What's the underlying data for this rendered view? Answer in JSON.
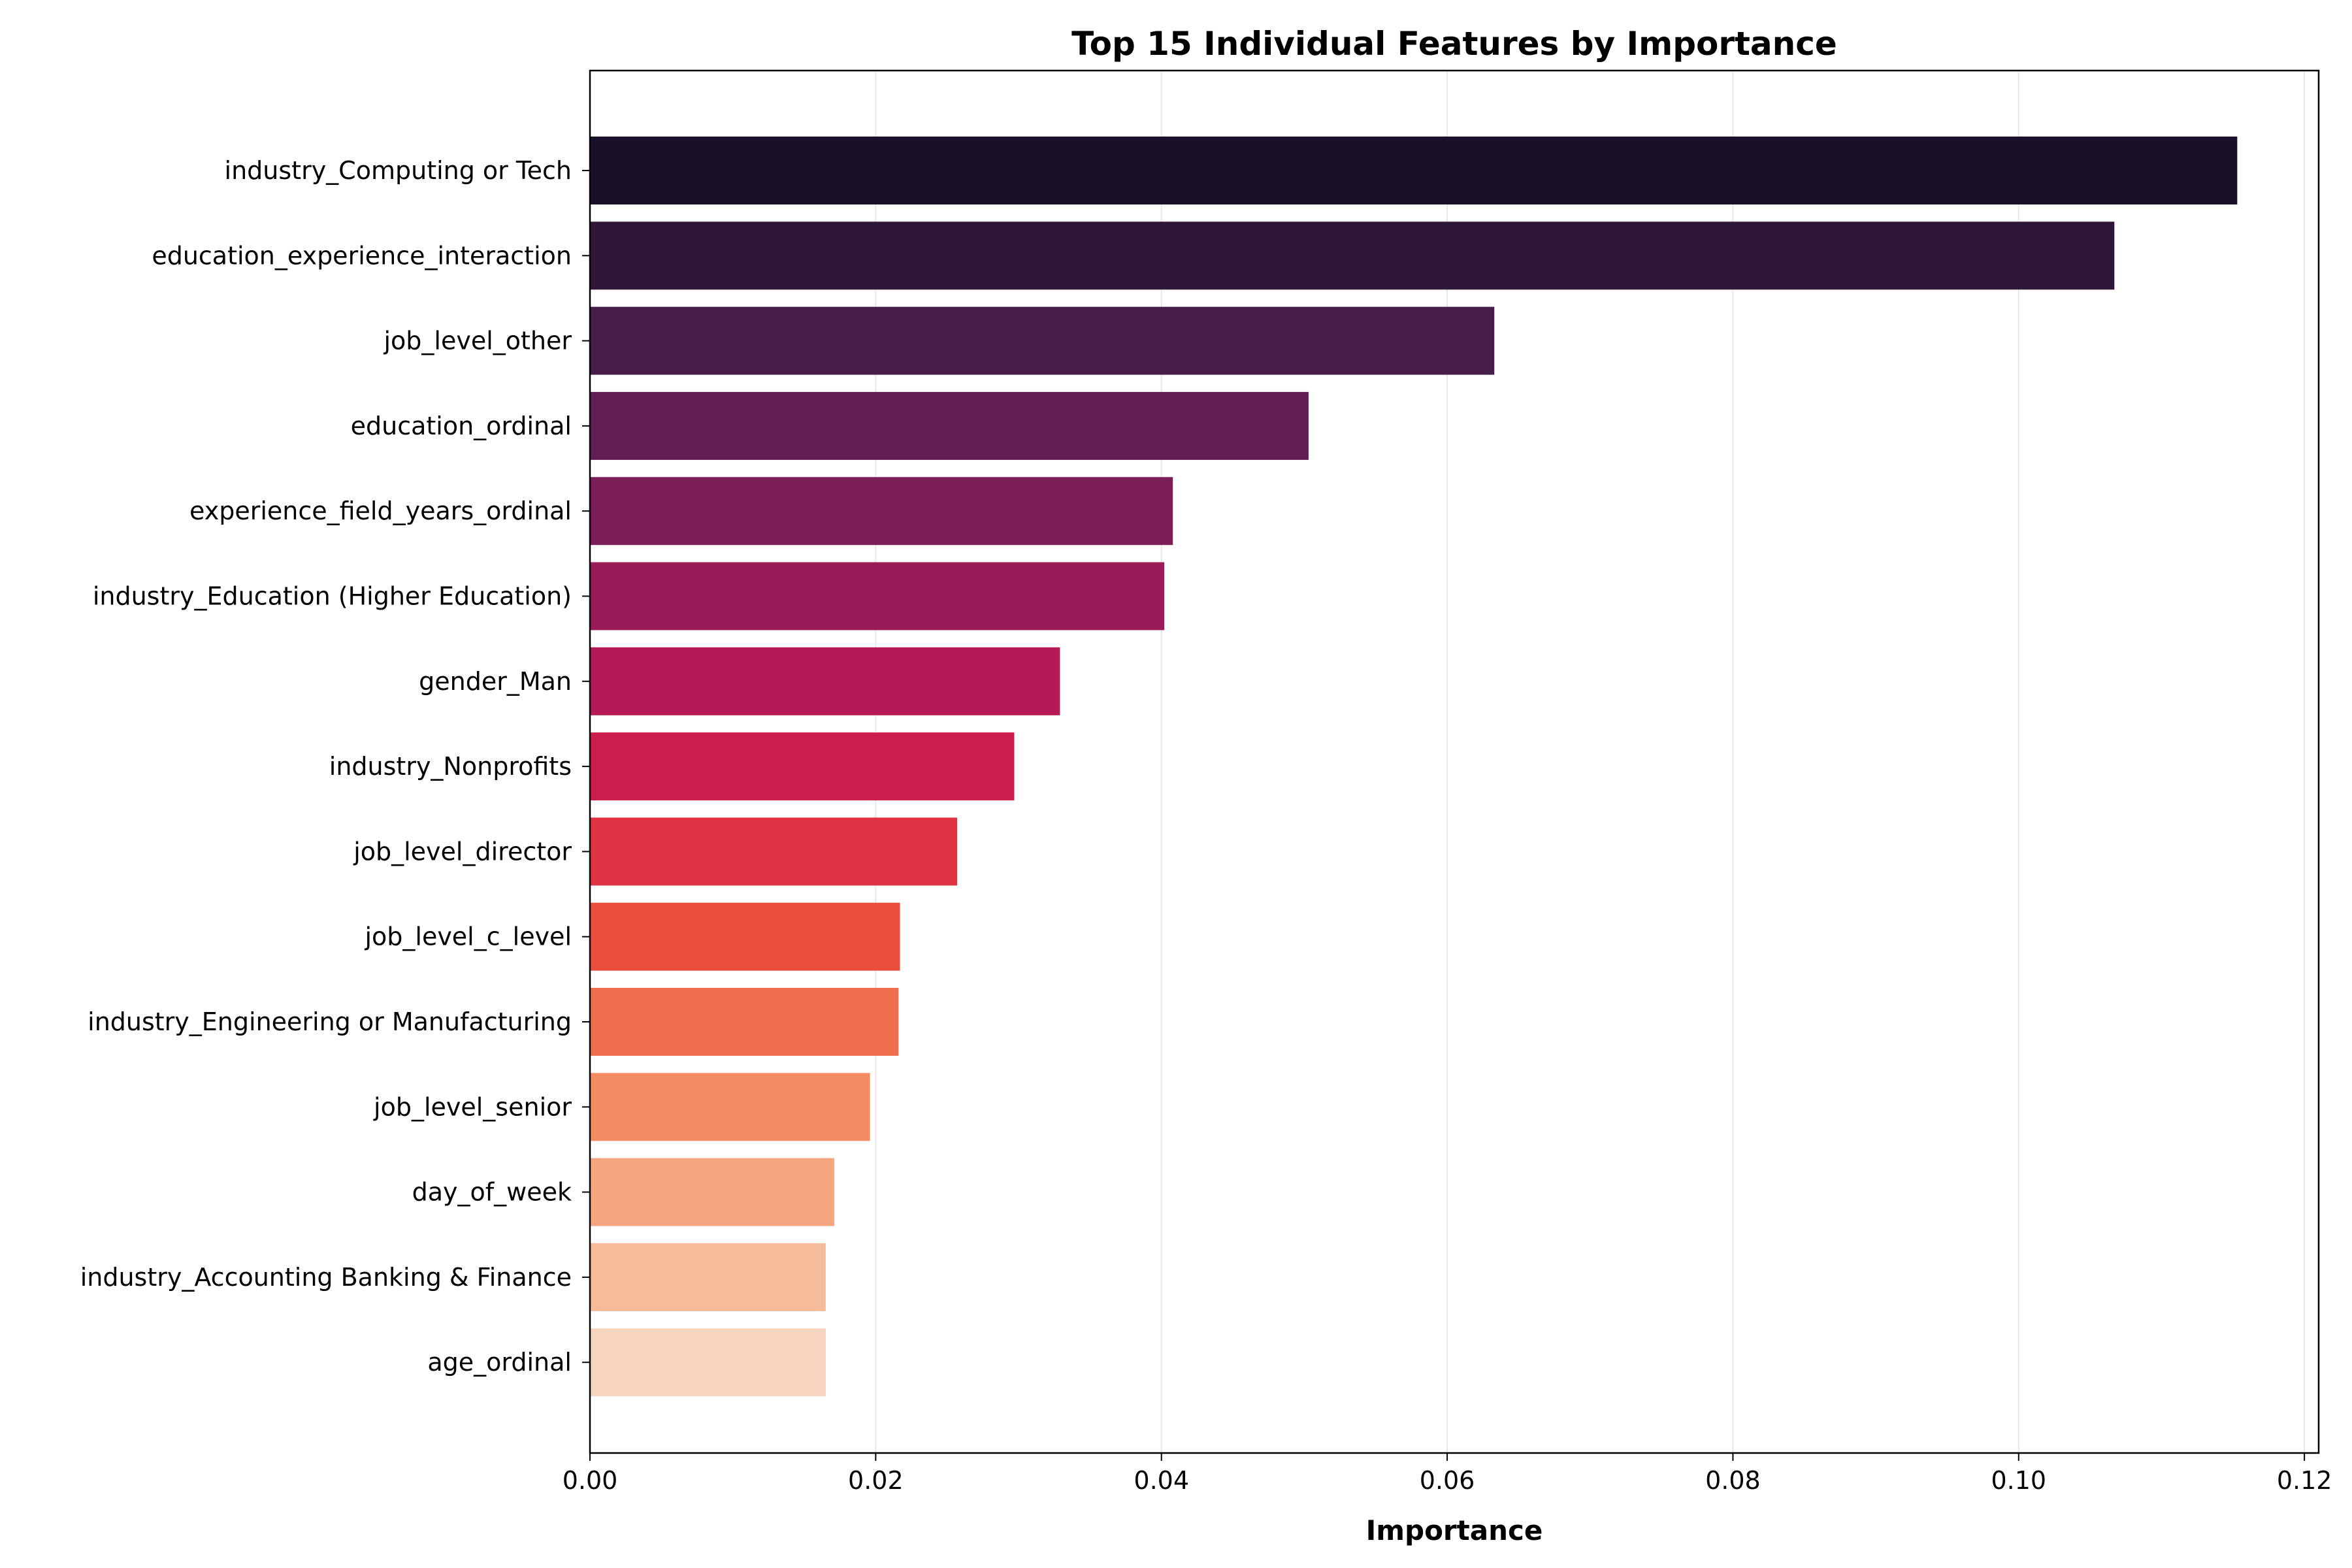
{
  "chart_data": {
    "type": "bar",
    "orientation": "horizontal",
    "title": "Top 15 Individual Features by Importance",
    "xlabel": "Importance",
    "ylabel": "",
    "xlim": [
      0,
      0.121
    ],
    "xticks": [
      0.0,
      0.02,
      0.04,
      0.06,
      0.08,
      0.1,
      0.12
    ],
    "xtick_labels": [
      "0.00",
      "0.02",
      "0.04",
      "0.06",
      "0.08",
      "0.10",
      "0.12"
    ],
    "grid": "x",
    "categories": [
      "industry_Computing or Tech",
      "education_experience_interaction",
      "job_level_other",
      "education_ordinal",
      "experience_field_years_ordinal",
      "industry_Education (Higher Education)",
      "gender_Man",
      "industry_Nonprofits",
      "job_level_director",
      "job_level_c_level",
      "industry_Engineering or Manufacturing",
      "job_level_senior",
      "day_of_week",
      "industry_Accounting Banking & Finance",
      "age_ordinal"
    ],
    "values": [
      0.1153,
      0.1067,
      0.0633,
      0.0503,
      0.0408,
      0.0402,
      0.0329,
      0.0297,
      0.0257,
      0.0217,
      0.0216,
      0.0196,
      0.0171,
      0.0165,
      0.0165
    ],
    "colors": [
      "#1a1029",
      "#30173a",
      "#471d4a",
      "#621f53",
      "#7c1f59",
      "#991c59",
      "#b41a55",
      "#cc1e4e",
      "#e03243",
      "#eb4d3f",
      "#f06d4d",
      "#f48b63",
      "#f6a67e",
      "#f6bc9a",
      "#f7d4be"
    ]
  }
}
